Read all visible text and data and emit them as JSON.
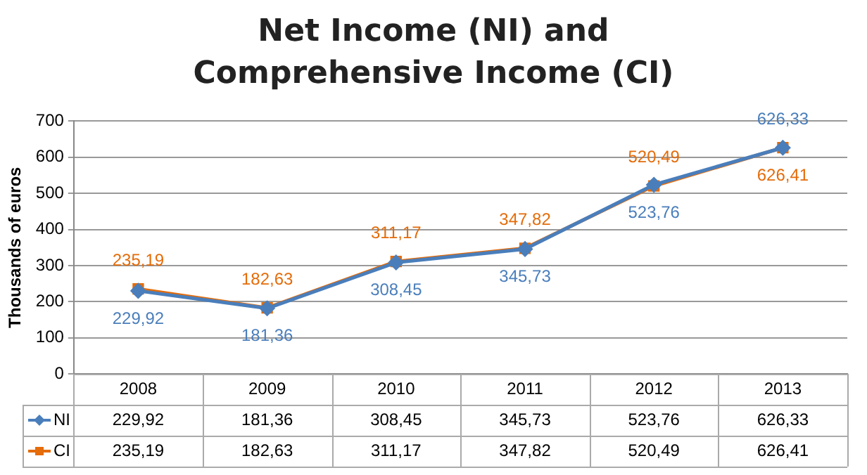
{
  "chart_data": {
    "type": "line",
    "title": "Net Income (NI) and Comprehensive Income (CI)",
    "ylabel": "Thousands of euros",
    "categories": [
      "2008",
      "2009",
      "2010",
      "2011",
      "2012",
      "2013"
    ],
    "series": [
      {
        "name": "NI",
        "color": "#4a7ebb",
        "marker": "diamond",
        "values": [
          229.92,
          181.36,
          308.45,
          345.73,
          523.76,
          626.33
        ],
        "value_labels": [
          "229,92",
          "181,36",
          "308,45",
          "345,73",
          "523,76",
          "626,33"
        ]
      },
      {
        "name": "CI",
        "color": "#e46c0a",
        "marker": "square",
        "values": [
          235.19,
          182.63,
          311.17,
          347.82,
          520.49,
          626.41
        ],
        "value_labels": [
          "235,19",
          "182,63",
          "311,17",
          "347,82",
          "520,49",
          "626,41"
        ]
      }
    ],
    "ylim": [
      0,
      700
    ],
    "yticks": [
      0,
      100,
      200,
      300,
      400,
      500,
      600,
      700
    ],
    "grid": "y",
    "legend": "bottom",
    "line_style": "solid"
  }
}
